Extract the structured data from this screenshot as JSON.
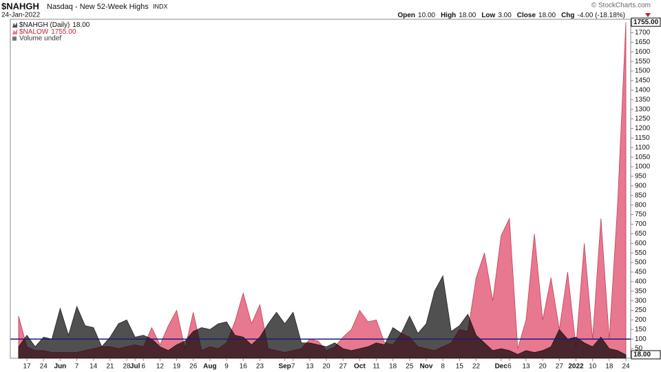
{
  "header": {
    "symbol": "$NAHGH",
    "description": "Nasdaq - New 52-Week Highs",
    "exchange": "INDX",
    "date": "24-Jan-2022",
    "credit": "© StockCharts.com",
    "quote": [
      {
        "label": "Open",
        "value": "10.00"
      },
      {
        "label": "High",
        "value": "18.00"
      },
      {
        "label": "Low",
        "value": "3.00"
      },
      {
        "label": "Close",
        "value": "18.00"
      },
      {
        "label": "Chg",
        "value": "-4.00 (-18.18%)"
      }
    ]
  },
  "chart_data": {
    "type": "area",
    "categories": [
      null,
      "17",
      null,
      "24",
      null,
      "Jun",
      null,
      "7",
      null,
      "14",
      null,
      "21",
      null,
      "28",
      "Jul",
      "6",
      null,
      "12",
      null,
      "19",
      null,
      "26",
      null,
      "Aug",
      null,
      "9",
      null,
      "16",
      null,
      "23",
      null,
      null,
      "Sep",
      "7",
      null,
      "13",
      null,
      "20",
      null,
      "27",
      null,
      "Oct",
      null,
      "11",
      null,
      "18",
      null,
      "25",
      null,
      "Nov",
      null,
      "8",
      null,
      "15",
      null,
      "22",
      null,
      null,
      "Dec",
      "6",
      null,
      "13",
      null,
      "20",
      null,
      "27",
      null,
      "2022",
      null,
      "10",
      null,
      "18",
      null,
      "24"
    ],
    "series": [
      {
        "name": "$NALOW",
        "last_label": "1755.00",
        "color": "#e8788f",
        "values": [
          220,
          60,
          40,
          40,
          30,
          30,
          30,
          30,
          40,
          50,
          60,
          60,
          50,
          60,
          70,
          60,
          160,
          70,
          170,
          250,
          50,
          240,
          40,
          60,
          50,
          80,
          190,
          340,
          180,
          280,
          50,
          40,
          30,
          40,
          50,
          100,
          90,
          40,
          60,
          110,
          150,
          250,
          190,
          200,
          80,
          70,
          130,
          110,
          60,
          50,
          40,
          60,
          80,
          150,
          140,
          420,
          550,
          300,
          640,
          730,
          50,
          200,
          650,
          200,
          420,
          150,
          450,
          60,
          600,
          100,
          730,
          100,
          800,
          1755
        ]
      },
      {
        "name": "$NAHGH (Daily)",
        "last_label": "18.00",
        "color": "#505050",
        "values": [
          60,
          120,
          60,
          110,
          100,
          260,
          120,
          270,
          170,
          160,
          60,
          110,
          180,
          200,
          110,
          120,
          100,
          60,
          40,
          70,
          90,
          140,
          160,
          150,
          180,
          190,
          120,
          110,
          70,
          110,
          180,
          240,
          180,
          240,
          80,
          80,
          70,
          60,
          80,
          50,
          40,
          50,
          60,
          80,
          70,
          160,
          130,
          220,
          130,
          180,
          350,
          430,
          140,
          170,
          230,
          120,
          80,
          40,
          50,
          40,
          20,
          40,
          30,
          40,
          60,
          150,
          100,
          110,
          80,
          60,
          110,
          50,
          40,
          18
        ]
      }
    ],
    "legend_extra": "Volume undef",
    "hline": {
      "value": 100,
      "color": "#1a1a7a"
    },
    "ylim": [
      0,
      1770
    ],
    "yticks": [
      50,
      100,
      150,
      200,
      250,
      300,
      350,
      400,
      450,
      500,
      550,
      600,
      650,
      700,
      750,
      800,
      850,
      900,
      950,
      1000,
      1050,
      1100,
      1150,
      1200,
      1250,
      1300,
      1350,
      1400,
      1450,
      1500,
      1550,
      1600,
      1650,
      1700
    ],
    "grid": false
  }
}
